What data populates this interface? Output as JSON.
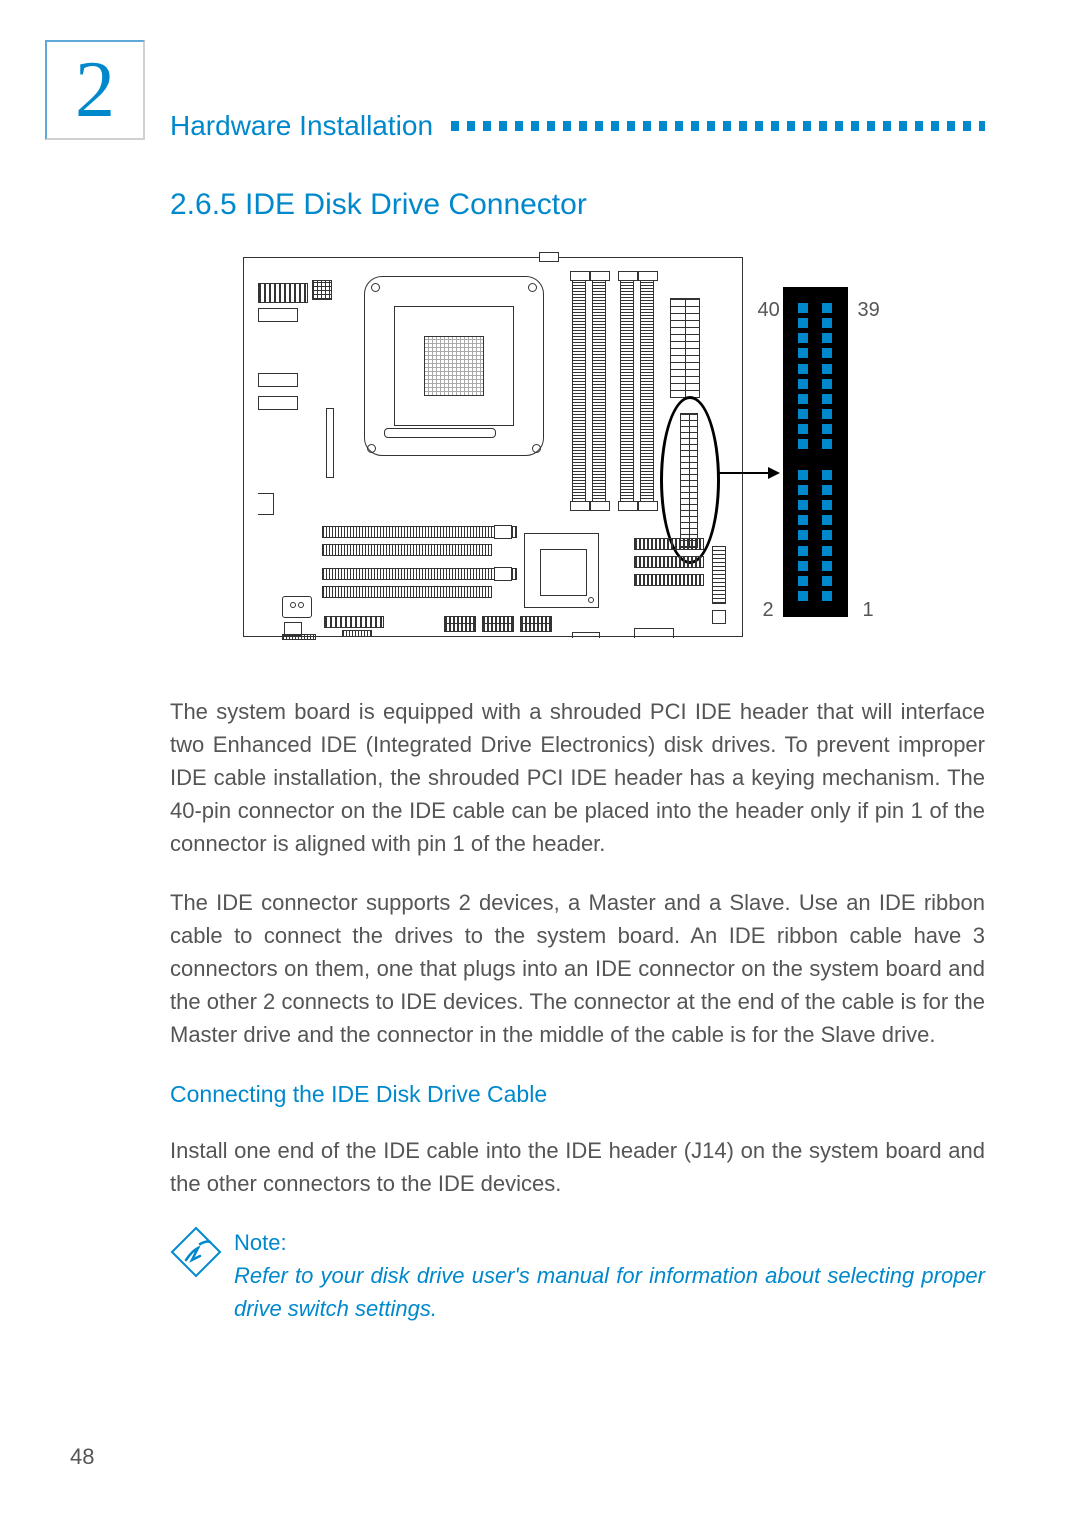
{
  "chapter_number": "2",
  "header_title": "Hardware Installation",
  "section_title": "2.6.5  IDE Disk Drive Connector",
  "pin_labels": {
    "tl": "40",
    "tr": "39",
    "bl": "2",
    "br": "1"
  },
  "pinout": {
    "rows": 20,
    "cols": 2,
    "gap_row_index": 10,
    "pin_color": "#0088cc",
    "block_bg": "#000000"
  },
  "paragraph1": "The system board is equipped with a shrouded PCI IDE header that will interface two Enhanced IDE (Integrated Drive Electronics) disk drives. To prevent improper IDE cable installation, the shrouded PCI IDE header has a keying mechanism. The 40-pin connector on the IDE cable can be placed into the header only if pin 1 of the connector is aligned with pin 1 of the header.",
  "paragraph2": "The IDE connector supports 2 devices, a Master and a Slave. Use an IDE ribbon cable to connect the drives to the system board. An IDE ribbon cable have 3 connectors on them, one that plugs into an IDE connector on the system board and the other 2 connects to IDE devices. The connector at the end of the cable is for the Master drive and the connector in the middle of the cable is for the Slave drive.",
  "subhead": "Connecting the IDE Disk Drive Cable",
  "paragraph3": "Install one end of the IDE cable into the IDE header (J14) on the system board and the other connectors to the IDE devices.",
  "note_title": "Note:",
  "note_body": "Refer to your disk drive user's manual for information about selecting proper drive switch settings.",
  "page_number": "48",
  "colors": {
    "accent": "#0088cc",
    "text": "#555555"
  }
}
